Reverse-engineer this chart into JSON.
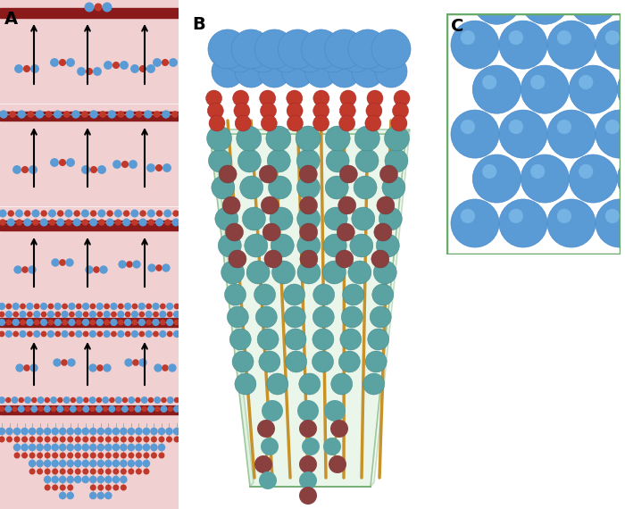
{
  "panel_A_bg": "#f0d0d0",
  "dark_red_bar": "#8B1A1A",
  "blue_node": "#5B9BD5",
  "red_node": "#C0392B",
  "teal_node": "#5BA3A3",
  "brown_node": "#8B4040",
  "rod_color": "#C8922A",
  "green_box_fill": "#d4ecd4",
  "green_box_edge": "#6aaa6a",
  "panel_C_bg": "#c8e8c8",
  "label_fontsize": 14,
  "title_A": "A",
  "title_B": "B",
  "title_C": "C"
}
